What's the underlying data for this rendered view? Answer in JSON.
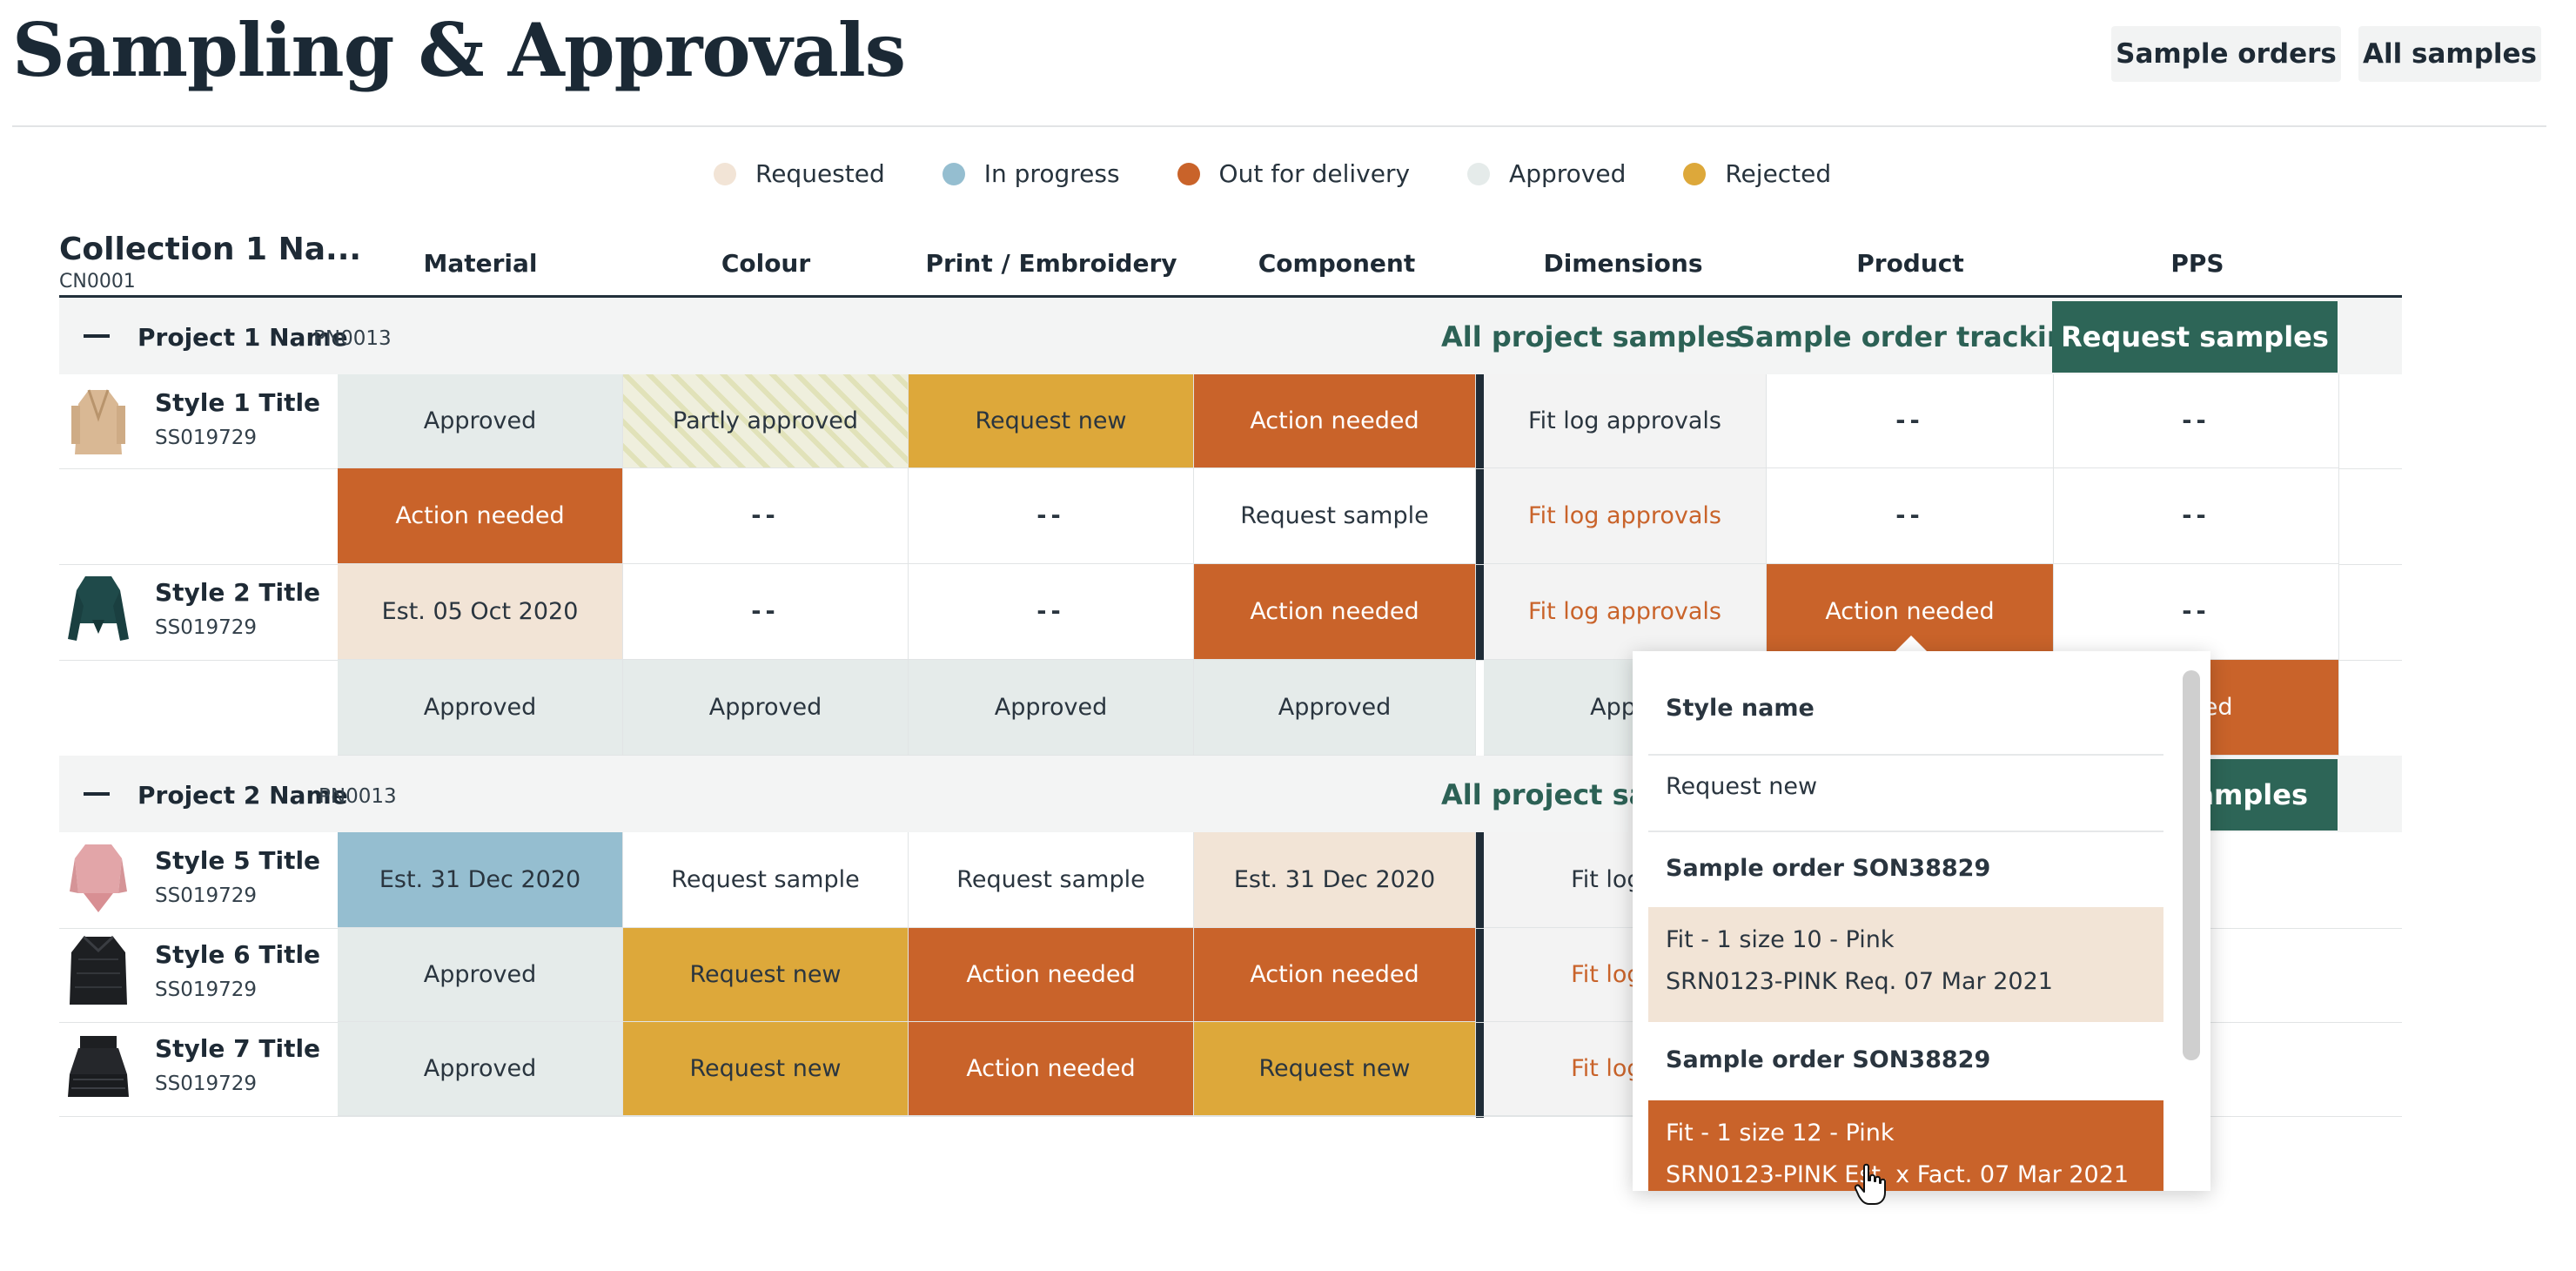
{
  "page": {
    "title": "Sampling & Approvals"
  },
  "header_buttons": {
    "sample_orders": "Sample orders",
    "all_samples": "All samples"
  },
  "legend": [
    {
      "label": "Requested",
      "color": "#f2e4d6"
    },
    {
      "label": "In progress",
      "color": "#95bed0"
    },
    {
      "label": "Out for delivery",
      "color": "#c9632a"
    },
    {
      "label": "Approved",
      "color": "#e5ebea"
    },
    {
      "label": "Rejected",
      "color": "#dda83a"
    }
  ],
  "collection": {
    "name": "Collection 1 Na...",
    "code": "CN0001"
  },
  "columns": [
    "Material",
    "Colour",
    "Print / Embroidery",
    "Component",
    "Dimensions",
    "Product",
    "PPS"
  ],
  "projects": [
    {
      "name": "Project 1 Name",
      "code": "PN0013",
      "all_samples": "All project samples",
      "tracking": "Sample order tracking",
      "request": "Request samples"
    },
    {
      "name": "Project 2 Name",
      "code": "PN0013",
      "all_samples": "All project san",
      "request": "amples"
    }
  ],
  "styles": [
    {
      "title": "Style 1 Title",
      "code": "SS019729"
    },
    {
      "title": "Style 2 Title",
      "code": "SS019729"
    },
    {
      "title": "Style 5 Title",
      "code": "SS019729"
    },
    {
      "title": "Style 6 Title",
      "code": "SS019729"
    },
    {
      "title": "Style 7 Title",
      "code": "SS019729"
    }
  ],
  "cells": {
    "approved": "Approved",
    "partly_approved": "Partly approved",
    "request_new": "Request new",
    "action_needed": "Action needed",
    "fit_log": "Fit log approvals",
    "dash": "--",
    "request_sample": "Request sample",
    "est_oct": "Est. 05 Oct 2020",
    "est_dec": "Est. 31 Dec 2020",
    "appro_trunc": "Appro",
    "fit_trunc": "Fit log ap",
    "eeded": "eeded"
  },
  "popup": {
    "header": "Style name",
    "request_new": "Request new",
    "order1": "Sample order SON38829",
    "item1_line1": "Fit - 1 size 10 - Pink",
    "item1_line2": "SRN0123-PINK Req. 07 Mar 2021",
    "order2": "Sample order SON38829",
    "item2_line1": "Fit - 1 size 12 - Pink",
    "item2_line2": "SRN0123-PINK Est. x Fact. 07 Mar 2021"
  },
  "colors": {
    "accent": "#2d6557",
    "out_for_delivery": "#c9632a",
    "rejected": "#dda83a",
    "in_progress": "#95bed0"
  }
}
